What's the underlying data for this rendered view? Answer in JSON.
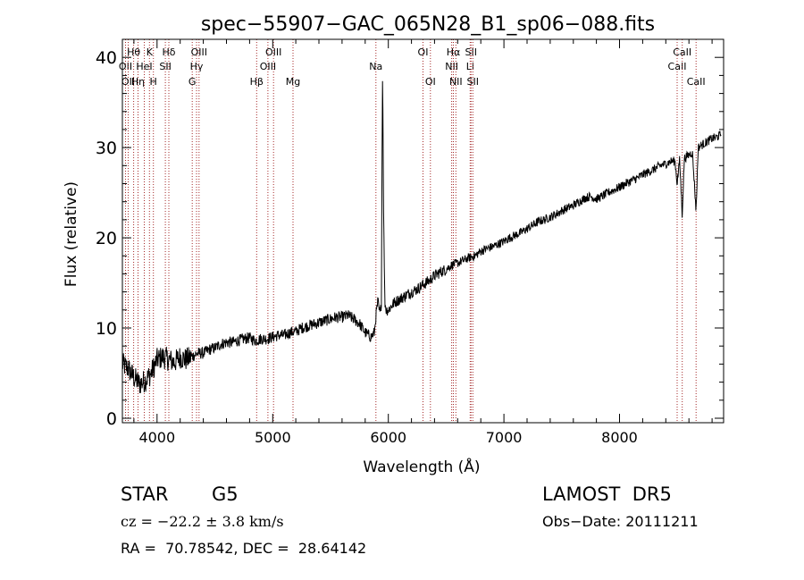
{
  "chart_data": {
    "type": "line",
    "title": "spec−55907−GAC_065N28_B1_sp06−088.fits",
    "xlabel": "Wavelength (Å)",
    "ylabel": "Flux (relative)",
    "xlim": [
      3700,
      8900
    ],
    "ylim": [
      -0.5,
      42
    ],
    "x_ticks": [
      4000,
      5000,
      6000,
      7000,
      8000
    ],
    "y_ticks": [
      0,
      10,
      20,
      30,
      40
    ],
    "grid": false,
    "legend": "none",
    "series": [
      {
        "x": [
          3700,
          3750,
          3800,
          3850,
          3900,
          3950,
          4000,
          4050,
          4100,
          4150,
          4200,
          4250,
          4300,
          4350,
          4400,
          4450,
          4500,
          4550,
          4600,
          4650,
          4700,
          4750,
          4800,
          4850,
          4900,
          4950,
          5000,
          5050,
          5100,
          5150,
          5200,
          5250,
          5300,
          5350,
          5400,
          5450,
          5500,
          5550,
          5600,
          5650,
          5700,
          5750,
          5800,
          5850,
          5880,
          5890,
          5900,
          5910,
          5920,
          5930,
          5940,
          5950,
          5960,
          5970,
          5980,
          6000,
          6050,
          6100,
          6150,
          6200,
          6250,
          6300,
          6350,
          6400,
          6450,
          6500,
          6550,
          6600,
          6650,
          6700,
          6750,
          6800,
          6850,
          6900,
          6950,
          7000,
          7050,
          7100,
          7150,
          7200,
          7250,
          7300,
          7350,
          7400,
          7450,
          7500,
          7550,
          7600,
          7650,
          7700,
          7750,
          7800,
          7850,
          7900,
          7950,
          8000,
          8050,
          8100,
          8150,
          8200,
          8250,
          8300,
          8350,
          8400,
          8450,
          8480,
          8498,
          8520,
          8542,
          8560,
          8600,
          8630,
          8662,
          8680,
          8700,
          8750,
          8800,
          8850,
          8880
        ],
        "y": [
          6,
          5.5,
          4.5,
          3.8,
          4.2,
          5,
          6.5,
          6.8,
          6.5,
          6.2,
          6.8,
          6.5,
          6.8,
          7.2,
          7.2,
          7.6,
          7.8,
          8.2,
          8.4,
          8.4,
          8.6,
          8.8,
          8.9,
          8.6,
          8.8,
          8.8,
          9,
          9.2,
          9.2,
          9.5,
          9.6,
          10,
          10.2,
          10.4,
          10.6,
          10.8,
          11,
          11.2,
          11.2,
          11.4,
          11,
          10.5,
          9.5,
          9,
          9.5,
          11,
          12,
          13,
          12,
          11.5,
          13,
          39,
          22,
          13,
          12,
          12,
          12.8,
          13.2,
          13.6,
          14,
          14.3,
          14.8,
          15.2,
          15.8,
          16.2,
          16.5,
          17,
          17.2,
          17.5,
          17.8,
          18,
          18.5,
          18.8,
          19,
          19.3,
          19.6,
          20,
          20.3,
          20.6,
          21,
          21.4,
          21.8,
          22,
          22.3,
          22.6,
          23,
          23.3,
          23.6,
          24,
          24.4,
          24.6,
          24.3,
          24.6,
          25,
          25.3,
          25.6,
          26,
          26.3,
          26.6,
          27,
          27.3,
          27.6,
          28,
          28.2,
          28.5,
          28.5,
          26,
          28.7,
          22.5,
          28.8,
          29.2,
          29.5,
          23,
          30,
          30.2,
          30.6,
          31,
          31.2,
          31.5
        ]
      }
    ],
    "annotations": {
      "lines": [
        {
          "x": 3727,
          "label": "OII",
          "row": 1
        },
        {
          "x": 3750,
          "label": "OII",
          "row": 2
        },
        {
          "x": 3797,
          "label": "Hθ",
          "row": 0
        },
        {
          "x": 3835,
          "label": "Hη",
          "row": 2
        },
        {
          "x": 3889,
          "label": "HeI",
          "row": 1
        },
        {
          "x": 3934,
          "label": "K",
          "row": 0
        },
        {
          "x": 3968,
          "label": "H",
          "row": 2
        },
        {
          "x": 4072,
          "label": "SII",
          "row": 1
        },
        {
          "x": 4102,
          "label": "Hδ",
          "row": 0
        },
        {
          "x": 4304,
          "label": "G",
          "row": 2
        },
        {
          "x": 4341,
          "label": "Hγ",
          "row": 1
        },
        {
          "x": 4363,
          "label": "OIII",
          "row": 0
        },
        {
          "x": 4861,
          "label": "Hβ",
          "row": 2
        },
        {
          "x": 4959,
          "label": "OIII",
          "row": 1
        },
        {
          "x": 5007,
          "label": "OIII",
          "row": 0
        },
        {
          "x": 5176,
          "label": "Mg",
          "row": 2
        },
        {
          "x": 5893,
          "label": "Na",
          "row": 1
        },
        {
          "x": 6300,
          "label": "OI",
          "row": 0
        },
        {
          "x": 6364,
          "label": "OI",
          "row": 2
        },
        {
          "x": 6548,
          "label": "NII",
          "row": 1
        },
        {
          "x": 6563,
          "label": "Hα",
          "row": 0
        },
        {
          "x": 6584,
          "label": "NII",
          "row": 2
        },
        {
          "x": 6708,
          "label": "Li",
          "row": 1
        },
        {
          "x": 6716,
          "label": "SII",
          "row": 0
        },
        {
          "x": 6731,
          "label": "SII",
          "row": 2
        },
        {
          "x": 8498,
          "label": "CaII",
          "row": 1
        },
        {
          "x": 8542,
          "label": "CaII",
          "row": 0
        },
        {
          "x": 8662,
          "label": "CaII",
          "row": 2
        }
      ]
    }
  },
  "info": {
    "object_class": "STAR",
    "subclass": "G5",
    "survey": "LAMOST  DR5",
    "velocity": "cz = −22.2 ± 3.8 km/s",
    "obs_date": "Obs−Date: 20111211",
    "coords": "RA =  70.78542, DEC =  28.64142"
  },
  "colors": {
    "spectrum": "#000000",
    "line_markers": "#a52a2a",
    "axes": "#000000",
    "background": "#ffffff"
  }
}
